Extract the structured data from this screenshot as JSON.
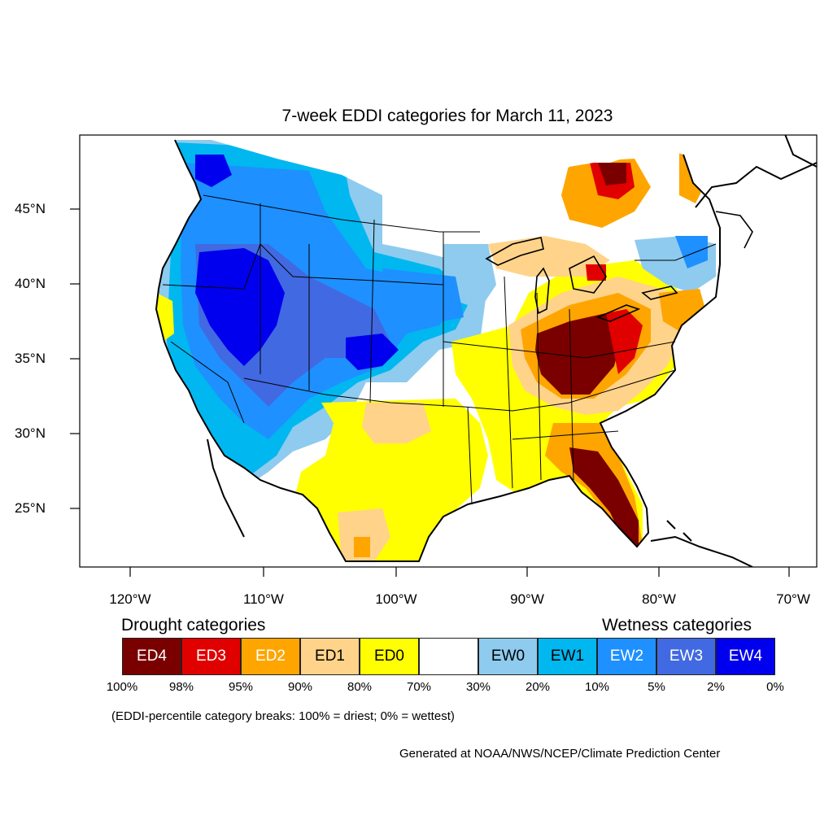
{
  "title": "7-week EDDI categories for March 11, 2023",
  "lat_labels": [
    "45°N",
    "40°N",
    "35°N",
    "30°N",
    "25°N"
  ],
  "lon_labels": [
    "120°W",
    "110°W",
    "100°W",
    "90°W",
    "80°W",
    "70°W"
  ],
  "legend": {
    "drought_title": "Drought categories",
    "wetness_title": "Wetness categories",
    "categories": [
      {
        "label": "ED4",
        "color": "#7a0000",
        "text_color": "#ffffff"
      },
      {
        "label": "ED3",
        "color": "#e00000",
        "text_color": "#ffffff"
      },
      {
        "label": "ED2",
        "color": "#ffa500",
        "text_color": "#ffffff"
      },
      {
        "label": "ED1",
        "color": "#ffd38a",
        "text_color": "#000000"
      },
      {
        "label": "ED0",
        "color": "#ffff00",
        "text_color": "#000000"
      },
      {
        "label": "",
        "color": "#ffffff",
        "text_color": "#000000"
      },
      {
        "label": "EW0",
        "color": "#8ecbee",
        "text_color": "#000000"
      },
      {
        "label": "EW1",
        "color": "#00b7f0",
        "text_color": "#000000"
      },
      {
        "label": "EW2",
        "color": "#1e90ff",
        "text_color": "#ffffff"
      },
      {
        "label": "EW3",
        "color": "#4169e1",
        "text_color": "#ffffff"
      },
      {
        "label": "EW4",
        "color": "#0000ee",
        "text_color": "#ffffff"
      }
    ],
    "breaks": [
      "100%",
      "98%",
      "95%",
      "90%",
      "80%",
      "70%",
      "30%",
      "20%",
      "10%",
      "5%",
      "2%",
      "0%"
    ]
  },
  "note": "(EDDI-percentile category breaks: 100% = driest; 0% = wettest)",
  "credit": "Generated at NOAA/NWS/NCEP/Climate Prediction Center"
}
